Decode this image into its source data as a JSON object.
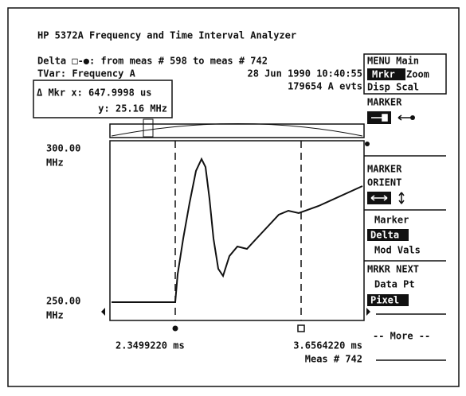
{
  "header": {
    "title": "HP 5372A Frequency and Time Interval Analyzer",
    "line1": "Delta □-●:  from meas # 598 to meas # 742",
    "tvar": "TVar: Frequency A",
    "datetime": "28 Jun 1990 10:40:55",
    "events": "179654 A evts",
    "mkr_x": "Δ Mkr x: 647.9998 us",
    "mkr_y": "y: 25.16 MHz"
  },
  "plot": {
    "y_top": "300.00",
    "y_top_unit": "MHz",
    "y_bottom": "250.00",
    "y_bottom_unit": "MHz",
    "x_left": "2.3499220 ms",
    "x_right": "3.6564220 ms",
    "meas": "Meas # 742"
  },
  "menu": {
    "title": "MENU Main",
    "mrkr": "Mrkr",
    "zoom": "Zoom",
    "disp_scal": "Disp Scal",
    "marker": "MARKER",
    "marker_orient": "MARKER",
    "orient": "ORIENT",
    "marker2": "Marker",
    "delta": "Delta",
    "mod_vals": "Mod Vals",
    "mrkr_next": "MRKR NEXT",
    "data_pt": "Data Pt",
    "pixel": "Pixel",
    "more": "-- More --"
  }
}
